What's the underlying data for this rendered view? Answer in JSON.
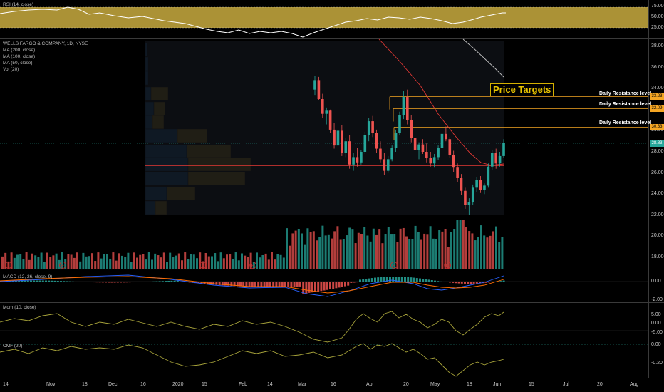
{
  "colors": {
    "up": "#26a69a",
    "down": "#ef5350",
    "rsi_band": "#d4b84a",
    "volume_profile_blue": "#1e6fb5",
    "volume_profile_gold": "#c9a227",
    "resistance": "#f5a623",
    "poc_line": "#e53935"
  },
  "panes": {
    "rsi": {
      "title": "RSI (14, close)",
      "levels": [
        "75.00",
        "50.00",
        "25.00"
      ]
    },
    "price": {
      "legend": [
        "WELLS FARGO & COMPANY, 1D, NYSE",
        "MA (200, close)",
        "MA (100, close)",
        "MA (50, close)",
        "Vol (20)"
      ],
      "axis_labels": [
        "38.00",
        "36.00",
        "34.00",
        "32.00",
        "30.00",
        "28.00",
        "26.00",
        "24.00",
        "22.00",
        "20.00",
        "18.00"
      ],
      "price_targets_title": "Price Targets",
      "resistances": [
        {
          "label": "Daily Resistance level",
          "price_tag": "33.23",
          "value": 33.23
        },
        {
          "label": "Daily Resistance level",
          "price_tag": "32.09",
          "value": 32.09
        },
        {
          "label": "Daily Resistance level",
          "price_tag": "30.33",
          "value": 30.33
        }
      ],
      "last_price": "28.83"
    },
    "macd": {
      "title": "MACD (12, 26, close, 9)",
      "levels": [
        "0.00",
        "-2.00"
      ]
    },
    "mom": {
      "title": "Mom (10, close)",
      "levels": [
        "5.00",
        "0.00",
        "-5.00"
      ]
    },
    "cmf": {
      "title": "CMF (20)",
      "levels": [
        "0.00",
        "-0.20"
      ]
    }
  },
  "time_axis": [
    "14",
    "Nov",
    "18",
    "Dec",
    "16",
    "2020",
    "15",
    "Feb",
    "14",
    "Mar",
    "16",
    "Apr",
    "20",
    "May",
    "18",
    "Jun",
    "15",
    "Jul",
    "20",
    "Aug"
  ],
  "event_markers": [
    "E",
    "E",
    "E",
    "E",
    "E",
    "E"
  ],
  "chart_data": {
    "type": "candlestick",
    "title": "WELLS FARGO & COMPANY, 1D, NYSE",
    "ylim": [
      17,
      39
    ],
    "visible_candles": [
      [
        33.9,
        35.2,
        33.4,
        34.8
      ],
      [
        34.8,
        35.1,
        32.9,
        33.0
      ],
      [
        33.0,
        33.5,
        31.2,
        31.6
      ],
      [
        31.6,
        32.2,
        30.6,
        31.9
      ],
      [
        31.9,
        32.0,
        29.8,
        30.1
      ],
      [
        30.1,
        30.7,
        28.3,
        28.6
      ],
      [
        28.6,
        30.4,
        27.9,
        30.0
      ],
      [
        30.0,
        30.5,
        27.6,
        27.9
      ],
      [
        27.9,
        29.3,
        27.5,
        29.0
      ],
      [
        29.0,
        29.6,
        26.4,
        26.8
      ],
      [
        26.8,
        27.9,
        26.2,
        27.5
      ],
      [
        27.5,
        28.4,
        26.6,
        27.0
      ],
      [
        27.0,
        28.2,
        26.8,
        28.0
      ],
      [
        28.0,
        29.9,
        27.8,
        29.6
      ],
      [
        29.6,
        31.2,
        29.0,
        30.9
      ],
      [
        30.9,
        31.4,
        29.4,
        29.8
      ],
      [
        29.8,
        30.1,
        27.9,
        28.3
      ],
      [
        28.3,
        29.0,
        27.0,
        27.3
      ],
      [
        27.3,
        27.9,
        25.8,
        26.2
      ],
      [
        26.2,
        27.6,
        26.0,
        27.3
      ],
      [
        27.3,
        28.6,
        27.1,
        28.4
      ],
      [
        28.4,
        30.1,
        28.0,
        29.8
      ],
      [
        29.8,
        31.8,
        29.6,
        31.5
      ],
      [
        31.5,
        33.8,
        31.1,
        33.2
      ],
      [
        33.2,
        33.9,
        30.6,
        31.0
      ],
      [
        31.0,
        31.5,
        28.9,
        29.3
      ],
      [
        29.3,
        29.7,
        27.8,
        28.2
      ],
      [
        28.2,
        28.9,
        27.3,
        28.7
      ],
      [
        28.7,
        29.2,
        27.8,
        28.0
      ],
      [
        28.0,
        28.8,
        27.0,
        27.4
      ],
      [
        27.4,
        28.0,
        26.6,
        26.9
      ],
      [
        26.9,
        27.8,
        26.5,
        27.5
      ],
      [
        27.5,
        28.6,
        27.2,
        28.4
      ],
      [
        28.4,
        29.9,
        28.1,
        29.7
      ],
      [
        29.7,
        30.4,
        29.0,
        29.2
      ],
      [
        29.2,
        29.4,
        27.4,
        27.7
      ],
      [
        27.7,
        28.1,
        26.1,
        26.5
      ],
      [
        26.5,
        26.9,
        25.1,
        25.5
      ],
      [
        25.5,
        25.9,
        23.9,
        24.3
      ],
      [
        24.3,
        24.6,
        22.6,
        23.0
      ],
      [
        23.0,
        23.6,
        22.0,
        23.2
      ],
      [
        23.2,
        24.9,
        23.0,
        24.6
      ],
      [
        24.6,
        25.6,
        24.2,
        25.3
      ],
      [
        25.3,
        25.7,
        24.1,
        24.4
      ],
      [
        24.4,
        25.0,
        24.0,
        24.8
      ],
      [
        24.8,
        26.9,
        24.6,
        26.6
      ],
      [
        26.6,
        28.2,
        26.3,
        27.9
      ],
      [
        27.9,
        28.3,
        26.4,
        26.9
      ],
      [
        26.9,
        28.0,
        26.6,
        27.6
      ],
      [
        27.6,
        29.2,
        27.4,
        28.83
      ]
    ],
    "series": [
      {
        "name": "MA (200, close)",
        "color": "#9e9e9e"
      },
      {
        "name": "MA (100, close)",
        "color": "#ffffff"
      },
      {
        "name": "MA (50, close)",
        "color": "#ef5350"
      }
    ],
    "resistance_levels": [
      33.23,
      32.09,
      30.33
    ],
    "last_price": 28.83
  }
}
